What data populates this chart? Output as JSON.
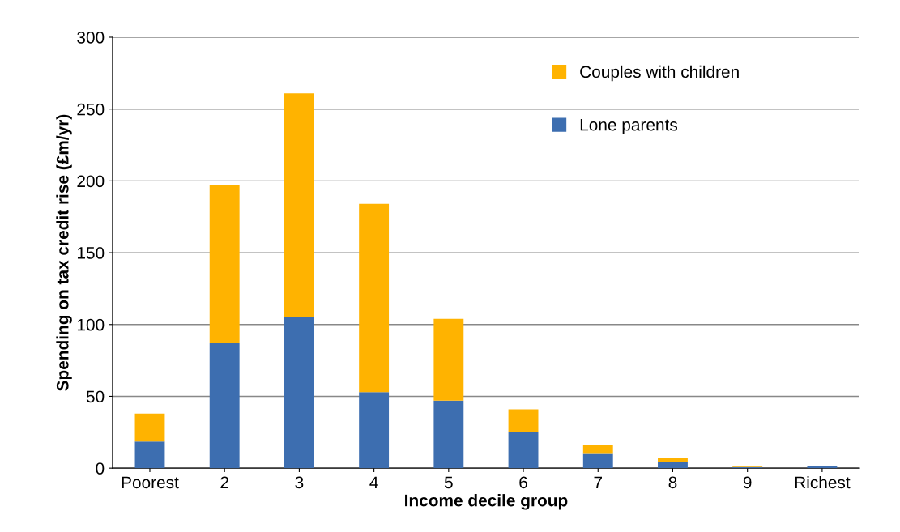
{
  "chart_data": {
    "type": "bar",
    "stacked": true,
    "xlabel": "Income decile group",
    "ylabel": "Spending on tax credit rise (£m/yr)",
    "categories": [
      "Poorest",
      "2",
      "3",
      "4",
      "5",
      "6",
      "7",
      "8",
      "9",
      "Richest"
    ],
    "series": [
      {
        "name": "Lone parents",
        "color": "#3d6eb0",
        "values": [
          18.5,
          87,
          105,
          53,
          47,
          25,
          10,
          4,
          0.8,
          1.2
        ]
      },
      {
        "name": "Couples with children",
        "color": "#ffb300",
        "values": [
          19.5,
          110,
          156,
          131,
          57,
          16,
          6.5,
          3,
          0.7,
          0
        ]
      }
    ],
    "ylim": [
      0,
      300
    ],
    "yticks": [
      0,
      50,
      100,
      150,
      200,
      250,
      300
    ],
    "grid": "y",
    "legend": "top right"
  }
}
